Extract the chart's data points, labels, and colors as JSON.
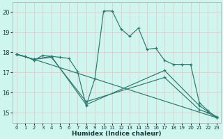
{
  "xlabel": "Humidex (Indice chaleur)",
  "bg_color": "#cef5ee",
  "grid_color": "#e8c8c8",
  "line_color": "#2d7a6e",
  "xlim": [
    -0.5,
    23.5
  ],
  "ylim": [
    14.5,
    20.5
  ],
  "yticks": [
    15,
    16,
    17,
    18,
    19,
    20
  ],
  "xticks": [
    0,
    1,
    2,
    3,
    4,
    5,
    6,
    7,
    8,
    9,
    10,
    11,
    12,
    13,
    14,
    15,
    16,
    17,
    18,
    19,
    20,
    21,
    22,
    23
  ],
  "lines": [
    {
      "x": [
        0,
        1,
        2,
        3,
        4,
        5,
        6,
        7,
        8,
        9,
        10,
        11,
        12,
        13,
        14,
        15,
        16,
        17,
        18,
        19,
        20,
        21,
        22,
        23
      ],
      "y": [
        17.9,
        17.8,
        17.6,
        17.85,
        17.8,
        17.75,
        17.7,
        17.05,
        15.35,
        16.7,
        20.05,
        20.05,
        19.15,
        18.8,
        19.2,
        18.15,
        18.2,
        17.6,
        17.4,
        17.4,
        17.4,
        15.5,
        15.1,
        14.75
      ]
    },
    {
      "x": [
        0,
        2,
        4,
        8,
        17,
        21,
        22,
        23
      ],
      "y": [
        17.9,
        17.65,
        17.8,
        15.4,
        17.1,
        15.35,
        15.05,
        14.8
      ]
    },
    {
      "x": [
        0,
        2,
        23
      ],
      "y": [
        17.9,
        17.65,
        14.75
      ]
    },
    {
      "x": [
        0,
        2,
        4,
        8,
        17,
        21,
        22,
        23
      ],
      "y": [
        17.9,
        17.65,
        17.75,
        15.55,
        16.75,
        15.15,
        15.0,
        14.75
      ]
    }
  ]
}
